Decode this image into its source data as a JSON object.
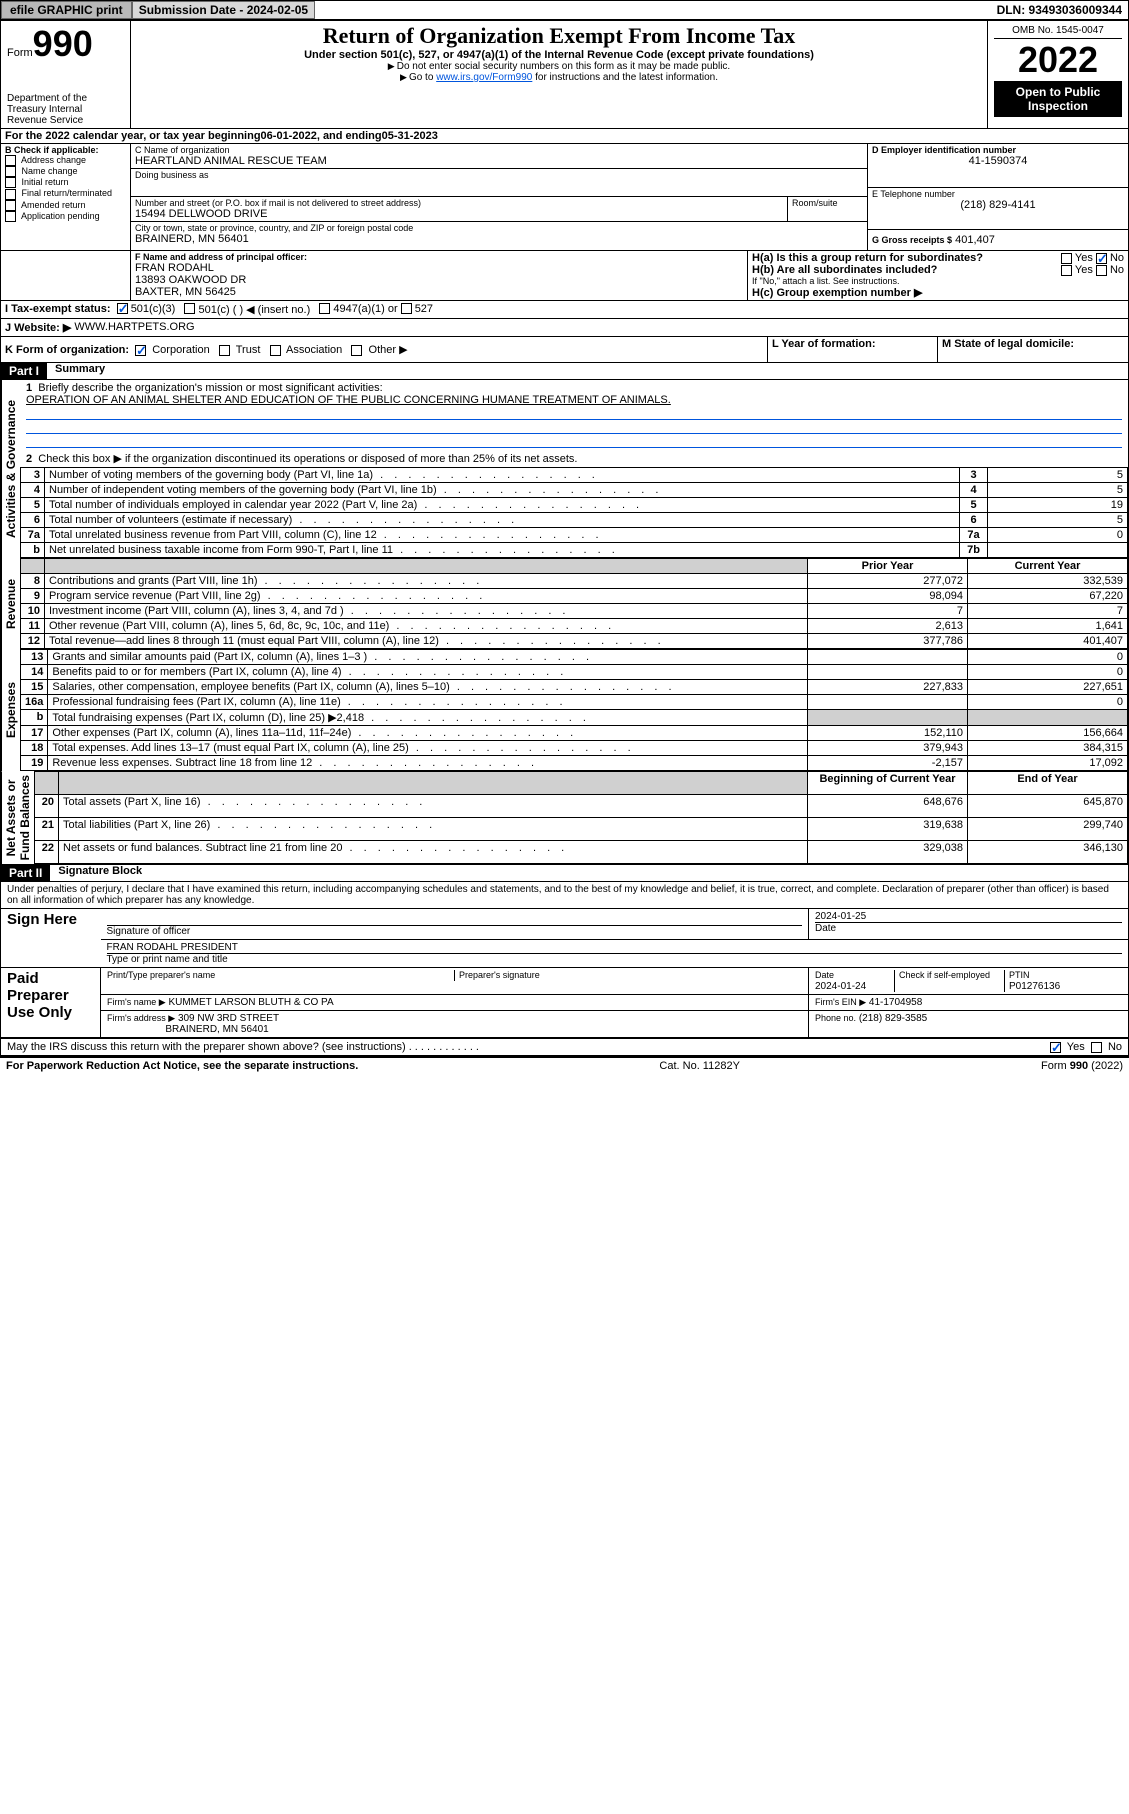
{
  "topbar": {
    "efile": "efile GRAPHIC print",
    "sub_label": "Submission Date - 2024-02-05",
    "dln": "DLN: 93493036009344"
  },
  "header": {
    "form_label": "Form",
    "form_num": "990",
    "dept": "Department of the Treasury\nInternal Revenue Service",
    "title": "Return of Organization Exempt From Income Tax",
    "subtitle": "Under section 501(c), 527, or 4947(a)(1) of the Internal Revenue Code (except private foundations)",
    "note1": "Do not enter social security numbers on this form as it may be made public.",
    "note2_pre": "Go to ",
    "note2_link": "www.irs.gov/Form990",
    "note2_post": " for instructions and the latest information.",
    "omb": "OMB No. 1545-0047",
    "year": "2022",
    "open": "Open to Public Inspection"
  },
  "line_a": {
    "text": "For the 2022 calendar year, or tax year beginning ",
    "begin": "06-01-2022",
    "mid": " , and ending ",
    "end": "05-31-2023"
  },
  "box_b": {
    "label": "B Check if applicable:",
    "items": [
      "Address change",
      "Name change",
      "Initial return",
      "Final return/terminated",
      "Amended return",
      "Application pending"
    ]
  },
  "box_c": {
    "name_label": "C Name of organization",
    "name": "HEARTLAND ANIMAL RESCUE TEAM",
    "dba_label": "Doing business as",
    "addr_label": "Number and street (or P.O. box if mail is not delivered to street address)",
    "room_label": "Room/suite",
    "addr": "15494 DELLWOOD DRIVE",
    "city_label": "City or town, state or province, country, and ZIP or foreign postal code",
    "city": "BRAINERD, MN  56401"
  },
  "box_d": {
    "label": "D Employer identification number",
    "val": "41-1590374"
  },
  "box_e": {
    "label": "E Telephone number",
    "val": "(218) 829-4141"
  },
  "box_g": {
    "label": "G Gross receipts $",
    "val": "401,407"
  },
  "box_f": {
    "label": "F Name and address of principal officer:",
    "name": "FRAN RODAHL",
    "addr1": "13893 OAKWOOD DR",
    "addr2": "BAXTER, MN  56425"
  },
  "box_h": {
    "ha": "H(a)  Is this a group return for subordinates?",
    "hb": "H(b)  Are all subordinates included?",
    "hb_note": "If \"No,\" attach a list. See instructions.",
    "hc": "H(c)  Group exemption number ▶",
    "yes": "Yes",
    "no": "No"
  },
  "line_i": {
    "label": "I   Tax-exempt status:",
    "c3": "501(c)(3)",
    "c": "501(c) (    ) ◀ (insert no.)",
    "a1": "4947(a)(1) or",
    "s527": "527"
  },
  "line_j": {
    "label": "J   Website: ▶",
    "val": "WWW.HARTPETS.ORG"
  },
  "line_k": {
    "label": "K Form of organization:",
    "corp": "Corporation",
    "trust": "Trust",
    "assoc": "Association",
    "other": "Other ▶"
  },
  "line_l": {
    "label": "L Year of formation:"
  },
  "line_m": {
    "label": "M State of legal domicile:"
  },
  "part1": {
    "bar": "Part I",
    "title": "Summary",
    "q1": "Briefly describe the organization's mission or most significant activities:",
    "q1text": "OPERATION OF AN ANIMAL SHELTER AND EDUCATION OF THE PUBLIC CONCERNING HUMANE TREATMENT OF ANIMALS.",
    "q2": "Check this box ▶        if the organization discontinued its operations or disposed of more than 25% of its net assets.",
    "rows_ag": [
      {
        "n": "3",
        "t": "Number of voting members of the governing body (Part VI, line 1a)",
        "c": "3",
        "v": "5"
      },
      {
        "n": "4",
        "t": "Number of independent voting members of the governing body (Part VI, line 1b)",
        "c": "4",
        "v": "5"
      },
      {
        "n": "5",
        "t": "Total number of individuals employed in calendar year 2022 (Part V, line 2a)",
        "c": "5",
        "v": "19"
      },
      {
        "n": "6",
        "t": "Total number of volunteers (estimate if necessary)",
        "c": "6",
        "v": "5"
      },
      {
        "n": "7a",
        "t": "Total unrelated business revenue from Part VIII, column (C), line 12",
        "c": "7a",
        "v": "0"
      },
      {
        "n": "b",
        "t": "Net unrelated business taxable income from Form 990-T, Part I, line 11",
        "c": "7b",
        "v": ""
      }
    ],
    "col_prior": "Prior Year",
    "col_curr": "Current Year",
    "rows_rev": [
      {
        "n": "8",
        "t": "Contributions and grants (Part VIII, line 1h)",
        "p": "277,072",
        "c": "332,539"
      },
      {
        "n": "9",
        "t": "Program service revenue (Part VIII, line 2g)",
        "p": "98,094",
        "c": "67,220"
      },
      {
        "n": "10",
        "t": "Investment income (Part VIII, column (A), lines 3, 4, and 7d )",
        "p": "7",
        "c": "7"
      },
      {
        "n": "11",
        "t": "Other revenue (Part VIII, column (A), lines 5, 6d, 8c, 9c, 10c, and 11e)",
        "p": "2,613",
        "c": "1,641"
      },
      {
        "n": "12",
        "t": "Total revenue—add lines 8 through 11 (must equal Part VIII, column (A), line 12)",
        "p": "377,786",
        "c": "401,407"
      }
    ],
    "rows_exp": [
      {
        "n": "13",
        "t": "Grants and similar amounts paid (Part IX, column (A), lines 1–3 )",
        "p": "",
        "c": "0"
      },
      {
        "n": "14",
        "t": "Benefits paid to or for members (Part IX, column (A), line 4)",
        "p": "",
        "c": "0"
      },
      {
        "n": "15",
        "t": "Salaries, other compensation, employee benefits (Part IX, column (A), lines 5–10)",
        "p": "227,833",
        "c": "227,651"
      },
      {
        "n": "16a",
        "t": "Professional fundraising fees (Part IX, column (A), line 11e)",
        "p": "",
        "c": "0"
      },
      {
        "n": "b",
        "t": "Total fundraising expenses (Part IX, column (D), line 25) ▶2,418",
        "p": "GRAY",
        "c": "GRAY"
      },
      {
        "n": "17",
        "t": "Other expenses (Part IX, column (A), lines 11a–11d, 11f–24e)",
        "p": "152,110",
        "c": "156,664"
      },
      {
        "n": "18",
        "t": "Total expenses. Add lines 13–17 (must equal Part IX, column (A), line 25)",
        "p": "379,943",
        "c": "384,315"
      },
      {
        "n": "19",
        "t": "Revenue less expenses. Subtract line 18 from line 12",
        "p": "-2,157",
        "c": "17,092"
      }
    ],
    "col_boy": "Beginning of Current Year",
    "col_eoy": "End of Year",
    "rows_na": [
      {
        "n": "20",
        "t": "Total assets (Part X, line 16)",
        "p": "648,676",
        "c": "645,870"
      },
      {
        "n": "21",
        "t": "Total liabilities (Part X, line 26)",
        "p": "319,638",
        "c": "299,740"
      },
      {
        "n": "22",
        "t": "Net assets or fund balances. Subtract line 21 from line 20",
        "p": "329,038",
        "c": "346,130"
      }
    ],
    "vlabels": {
      "ag": "Activities & Governance",
      "rev": "Revenue",
      "exp": "Expenses",
      "na": "Net Assets or\nFund Balances"
    }
  },
  "part2": {
    "bar": "Part II",
    "title": "Signature Block",
    "decl": "Under penalties of perjury, I declare that I have examined this return, including accompanying schedules and statements, and to the best of my knowledge and belief, it is true, correct, and complete. Declaration of preparer (other than officer) is based on all information of which preparer has any knowledge.",
    "sign_here": "Sign Here",
    "sig_officer": "Signature of officer",
    "sig_date": "2024-01-25",
    "date_label": "Date",
    "name_title": "FRAN RODAHL PRESIDENT",
    "name_title_label": "Type or print name and title",
    "paid": "Paid Preparer Use Only",
    "prep_name_label": "Print/Type preparer's name",
    "prep_sig_label": "Preparer's signature",
    "prep_date_label": "Date",
    "prep_date": "2024-01-24",
    "check_se": "Check        if self-employed",
    "ptin_label": "PTIN",
    "ptin": "P01276136",
    "firm_name_label": "Firm's name    ▶",
    "firm_name": "KUMMET LARSON BLUTH & CO PA",
    "firm_ein_label": "Firm's EIN ▶",
    "firm_ein": "41-1704958",
    "firm_addr_label": "Firm's address ▶",
    "firm_addr1": "309 NW 3RD STREET",
    "firm_addr2": "BRAINERD, MN  56401",
    "phone_label": "Phone no.",
    "phone": "(218) 829-3585",
    "may_irs": "May the IRS discuss this return with the preparer shown above? (see instructions)",
    "yes": "Yes",
    "no": "No"
  },
  "footer": {
    "left": "For Paperwork Reduction Act Notice, see the separate instructions.",
    "mid": "Cat. No. 11282Y",
    "right_pre": "Form ",
    "right_b": "990",
    "right_post": " (2022)"
  }
}
